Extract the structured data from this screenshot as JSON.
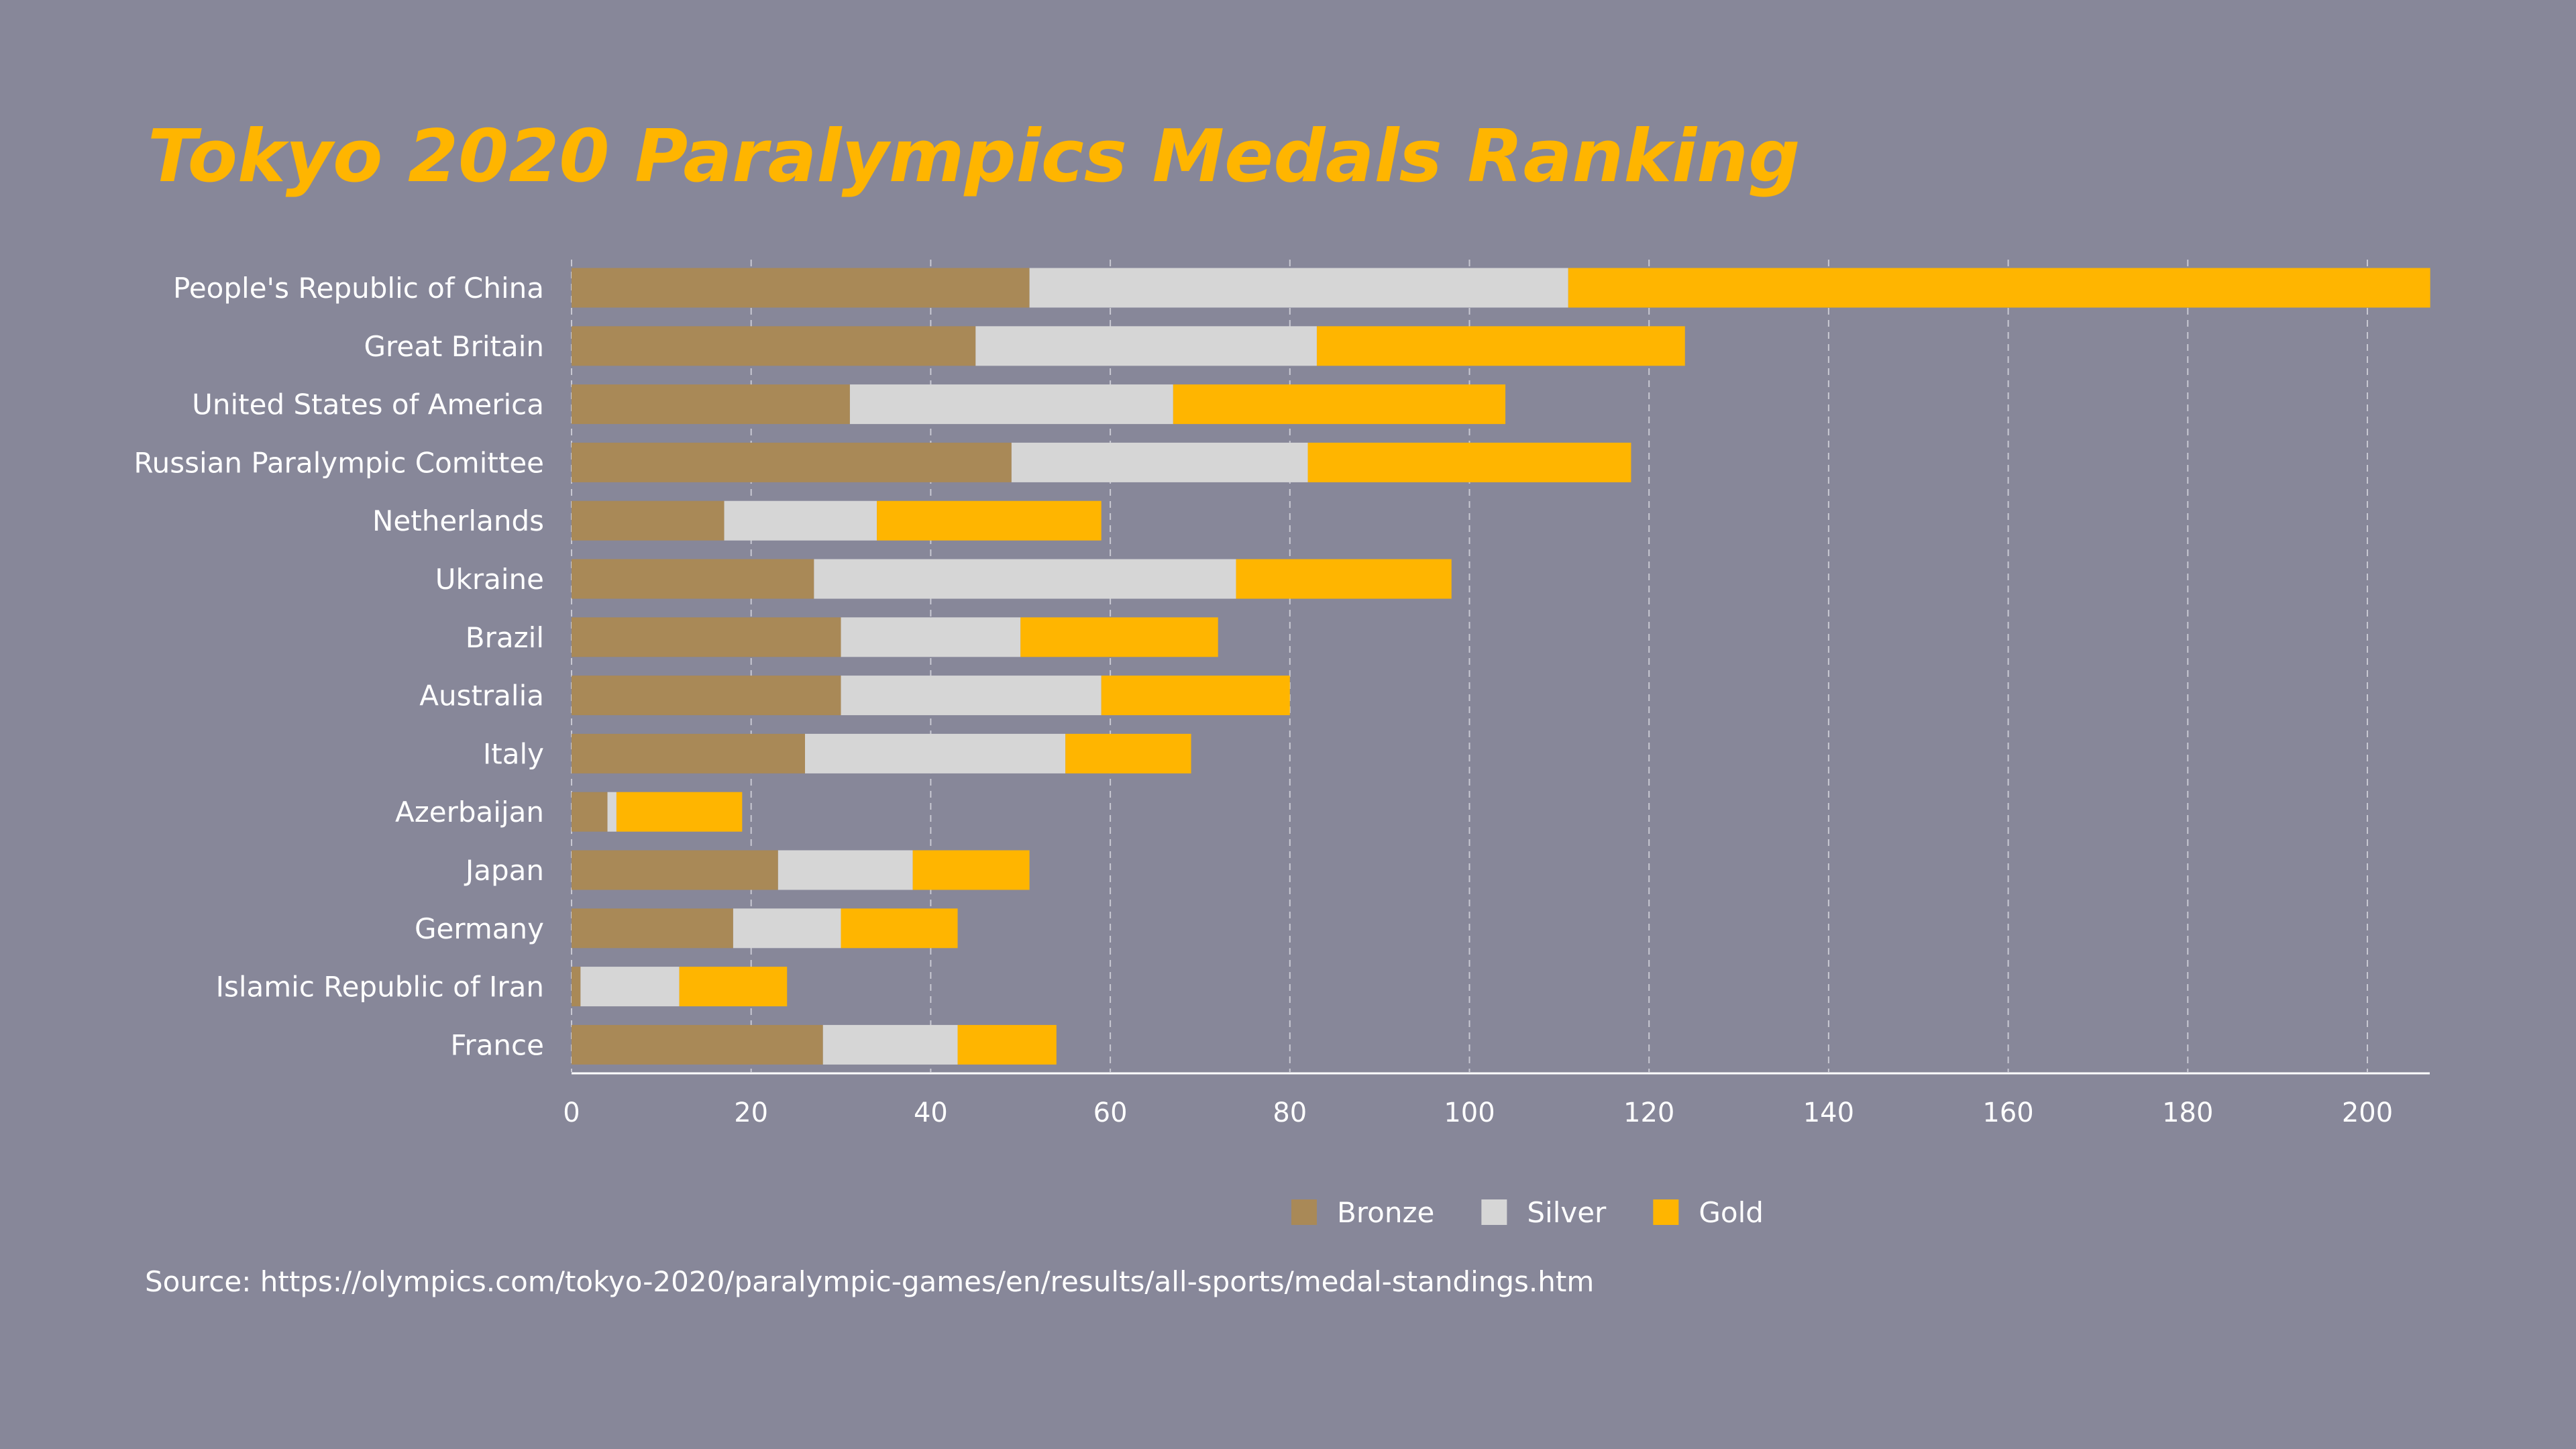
{
  "chart_data": {
    "type": "bar",
    "orientation": "horizontal",
    "stacked": true,
    "title": "Tokyo 2020 Paralympics Medals Ranking",
    "categories": [
      "People's Republic of China",
      "Great Britain",
      "United States of America",
      "Russian Paralympic Comittee",
      "Netherlands",
      "Ukraine",
      "Brazil",
      "Australia",
      "Italy",
      "Azerbaijan",
      "Japan",
      "Germany",
      "Islamic Republic of Iran",
      "France"
    ],
    "series": [
      {
        "name": "Bronze",
        "color": "#a98957",
        "values": [
          51,
          45,
          31,
          49,
          17,
          27,
          30,
          30,
          26,
          4,
          23,
          18,
          1,
          28
        ]
      },
      {
        "name": "Silver",
        "color": "#d6d6d6",
        "values": [
          60,
          38,
          36,
          33,
          17,
          47,
          20,
          29,
          29,
          1,
          15,
          12,
          11,
          15
        ]
      },
      {
        "name": "Gold",
        "color": "#ffb500",
        "values": [
          96,
          41,
          37,
          36,
          25,
          24,
          22,
          21,
          14,
          14,
          13,
          13,
          12,
          11
        ]
      }
    ],
    "xlim": [
      0,
      207
    ],
    "xticks": [
      0,
      20,
      40,
      60,
      80,
      100,
      120,
      140,
      160,
      180,
      200
    ],
    "grid": "vertical dashed",
    "legend": "bottom-center",
    "source": "Source: https://olympics.com/tokyo-2020/paralympic-games/en/results/all-sports/medal-standings.htm"
  },
  "colors": {
    "background": "#878799",
    "title": "#ffb500"
  }
}
